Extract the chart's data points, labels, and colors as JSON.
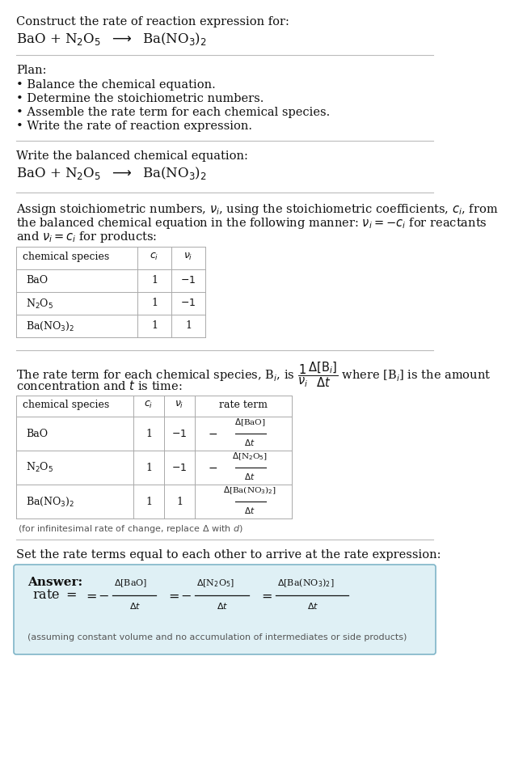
{
  "title_line1": "Construct the rate of reaction expression for:",
  "title_eq": "BaO + N$_2$O$_5$  $\\longrightarrow$  Ba(NO$_3$)$_2$",
  "plan_header": "Plan:",
  "plan_items": [
    "• Balance the chemical equation.",
    "• Determine the stoichiometric numbers.",
    "• Assemble the rate term for each chemical species.",
    "• Write the rate of reaction expression."
  ],
  "section2_header": "Write the balanced chemical equation:",
  "section2_eq": "BaO + N$_2$O$_5$  $\\longrightarrow$  Ba(NO$_3$)$_2$",
  "section3_text": [
    "Assign stoichiometric numbers, $\\nu_i$, using the stoichiometric coefficients, $c_i$, from",
    "the balanced chemical equation in the following manner: $\\nu_i = -c_i$ for reactants",
    "and $\\nu_i = c_i$ for products:"
  ],
  "table1_headers": [
    "chemical species",
    "$c_i$",
    "$\\nu_i$"
  ],
  "table1_species": [
    "BaO",
    "N$_2$O$_5$",
    "Ba(NO$_3$)$_2$"
  ],
  "table1_ci": [
    "1",
    "1",
    "1"
  ],
  "table1_nu": [
    "$-1$",
    "$-1$",
    "1"
  ],
  "section4_text1": "The rate term for each chemical species, B$_i$, is $\\dfrac{1}{\\nu_i}\\dfrac{\\Delta[\\mathrm{B}_i]}{\\Delta t}$ where [B$_i$] is the amount",
  "section4_text2": "concentration and $t$ is time:",
  "table2_headers": [
    "chemical species",
    "$c_i$",
    "$\\nu_i$",
    "rate term"
  ],
  "table2_species": [
    "BaO",
    "N$_2$O$_5$",
    "Ba(NO$_3$)$_2$"
  ],
  "table2_ci": [
    "1",
    "1",
    "1"
  ],
  "table2_nu": [
    "$-1$",
    "$-1$",
    "1"
  ],
  "table2_rate_prefix": [
    "$-$",
    "$-$",
    ""
  ],
  "table2_rate_num": [
    "$\\Delta$[BaO]",
    "$\\Delta$[N$_2$O$_5$]",
    "$\\Delta$[Ba(NO$_3$)$_2$]"
  ],
  "table2_rate_denom": [
    "$\\Delta t$",
    "$\\Delta t$",
    "$\\Delta t$"
  ],
  "infinitesimal_note": "(for infinitesimal rate of change, replace Δ with $d$)",
  "section5_text": "Set the rate terms equal to each other to arrive at the rate expression:",
  "answer_label": "Answer:",
  "answer_note": "(assuming constant volume and no accumulation of intermediates or side products)",
  "bg_color": "#ffffff",
  "answer_box_bg": "#dff0f5",
  "answer_box_border": "#7fb5c8",
  "text_color": "#111111",
  "gray_text": "#555555",
  "sep_color": "#bbbbbb",
  "table_line_color": "#aaaaaa"
}
